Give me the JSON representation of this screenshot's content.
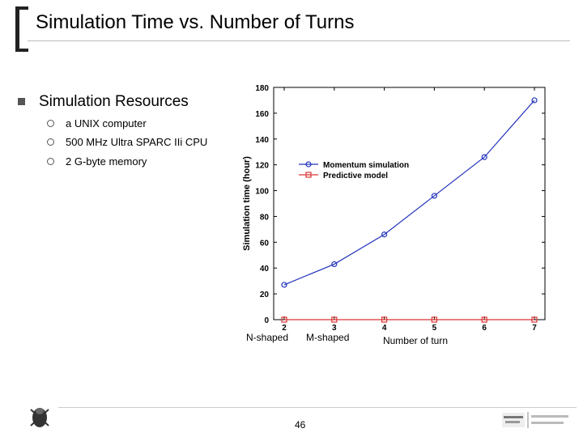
{
  "slide": {
    "title": "Simulation Time vs. Number of Turns",
    "bullet": "Simulation Resources",
    "subbullets": [
      "a UNIX computer",
      "500 MHz Ultra SPARC IIi CPU",
      "2 G-byte memory"
    ],
    "page_number": "46",
    "category_labels": [
      "N-shaped",
      "M-shaped"
    ]
  },
  "chart_data": {
    "type": "line",
    "title": "",
    "xlabel": "Number of turn",
    "ylabel": "Simulation time (hour)",
    "x": [
      2,
      3,
      4,
      5,
      6,
      7
    ],
    "xlim": [
      2,
      7
    ],
    "ylim": [
      0,
      180
    ],
    "yticks": [
      0,
      20,
      40,
      60,
      80,
      100,
      120,
      140,
      160,
      180
    ],
    "grid": false,
    "legend_position": "upper-left-inside",
    "series": [
      {
        "name": "Momentum simulation",
        "values": [
          27,
          43,
          66,
          96,
          126,
          170
        ],
        "color": "#2233bb",
        "marker": "circle"
      },
      {
        "name": "Predictive model",
        "values": [
          0,
          0,
          0,
          0,
          0,
          0
        ],
        "color": "#dd3333",
        "marker": "square"
      }
    ]
  }
}
